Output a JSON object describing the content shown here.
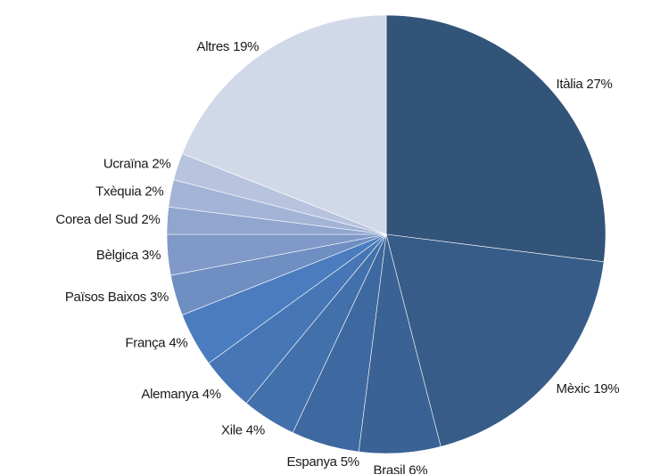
{
  "chart_data": {
    "type": "pie",
    "categories": [
      "Itàlia",
      "Mèxic",
      "Brasil",
      "Espanya",
      "Xile",
      "Alemanya",
      "França",
      "Països Baixos",
      "Bèlgica",
      "Corea del Sud",
      "Txèquia",
      "Ucraïna",
      "Altres"
    ],
    "values": [
      27,
      19,
      6,
      5,
      4,
      4,
      4,
      3,
      3,
      2,
      2,
      2,
      19
    ],
    "value_labels": [
      "27%",
      "19%",
      "6%",
      "5%",
      "4%",
      "4%",
      "4%",
      "3%",
      "3%",
      "2%",
      "2%",
      "2%",
      "19%"
    ],
    "colors": [
      "#335479",
      "#375c88",
      "#3a6294",
      "#3e68a0",
      "#4270ab",
      "#4676b5",
      "#4a7cbf",
      "#6f8ec2",
      "#8099c8",
      "#91a6cf",
      "#a3b4d6",
      "#b8c4de",
      "#d1d8e8"
    ]
  }
}
